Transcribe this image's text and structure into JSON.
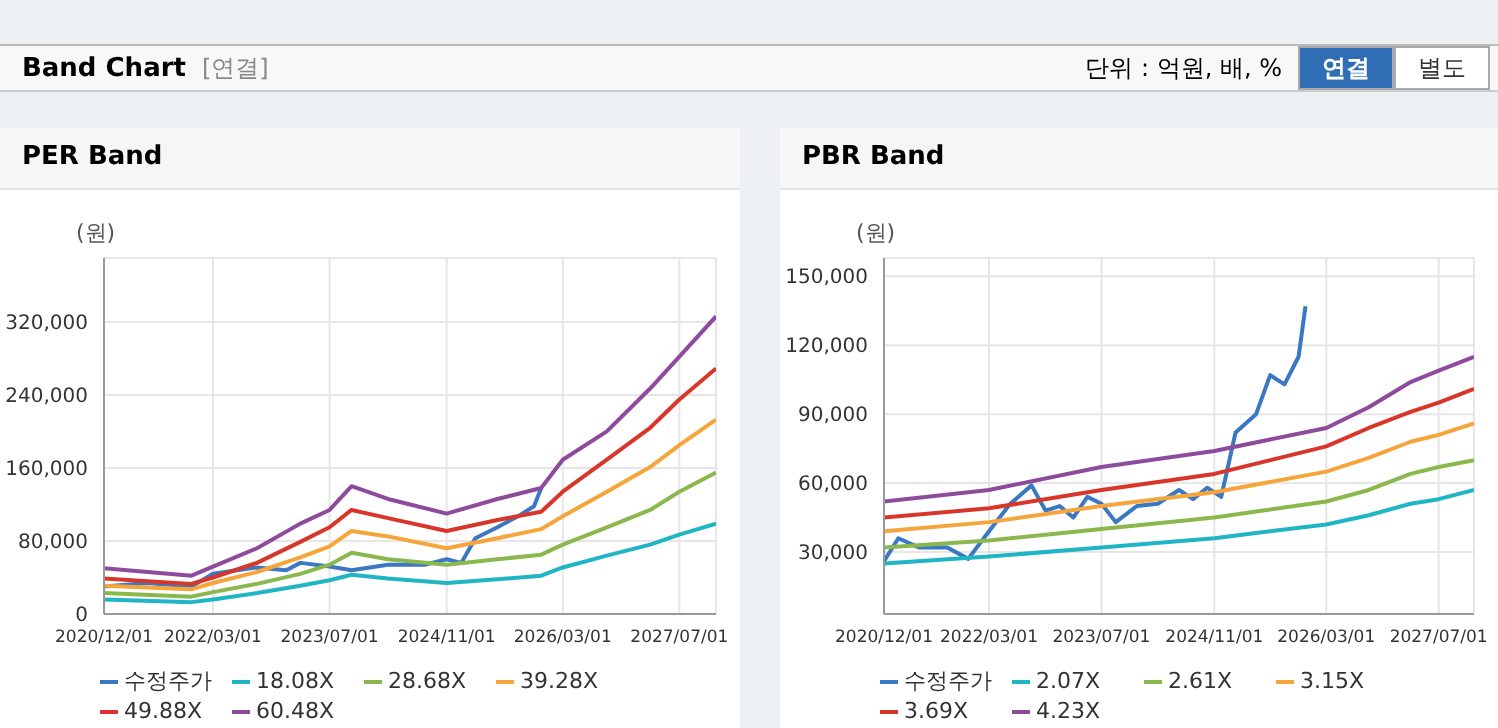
{
  "chart_data": [
    {
      "type": "other",
      "title": "Band Chart",
      "annotations": [
        "[연결]",
        "단위 : 억원, 배, %",
        "연결",
        "별도"
      ]
    },
    {
      "type": "line",
      "title": "PER Band",
      "ylabel": "(원)",
      "legend": "bottom",
      "grid": true,
      "xlim": [
        "2020-12-01",
        "2027-12-01"
      ],
      "ylim": [
        0,
        390000
      ],
      "xticks": [
        {
          "value": "2020-12-01",
          "label": "2020/12/01"
        },
        {
          "value": "2022-03-01",
          "label": "2022/03/01"
        },
        {
          "value": "2023-07-01",
          "label": "2023/07/01"
        },
        {
          "value": "2024-11-01",
          "label": "2024/11/01"
        },
        {
          "value": "2026-03-01",
          "label": "2026/03/01"
        },
        {
          "value": "2027-07-01",
          "label": "2027/07/01"
        }
      ],
      "yticks": [
        0,
        {
          "value": 80000,
          "label": "80,000"
        },
        {
          "value": 160000,
          "label": "160,000"
        },
        {
          "value": 240000,
          "label": "240,000"
        },
        {
          "value": 320000,
          "label": "320,000"
        }
      ],
      "series": [
        {
          "name": "수정주가",
          "color": "#3a78c3",
          "x": [
            "2020-12-01",
            "2021-06-01",
            "2021-12-01",
            "2022-03-01",
            "2022-09-01",
            "2023-01-01",
            "2023-03-01",
            "2023-07-01",
            "2023-10-01",
            "2024-03-01",
            "2024-08-01",
            "2024-11-01",
            "2025-01-01",
            "2025-03-01",
            "2025-06-01",
            "2025-09-01",
            "2025-11-01",
            "2025-12-01"
          ],
          "values": [
            30000,
            34000,
            30000,
            44000,
            51000,
            48000,
            56000,
            52000,
            48000,
            54000,
            54000,
            60000,
            56000,
            83000,
            95000,
            108000,
            118000,
            138000
          ]
        },
        {
          "name": "18.08X",
          "color": "#1fb5c5",
          "x": [
            "2020-12-01",
            "2021-12-01",
            "2022-03-01",
            "2022-09-01",
            "2023-03-01",
            "2023-07-01",
            "2023-10-01",
            "2024-03-01",
            "2024-11-01",
            "2025-06-01",
            "2025-12-01",
            "2026-03-01",
            "2026-09-01",
            "2027-03-01",
            "2027-07-01",
            "2027-12-01"
          ],
          "values": [
            16000,
            13000,
            16000,
            23000,
            31000,
            37000,
            43000,
            39000,
            34000,
            38000,
            42000,
            51000,
            64000,
            76000,
            87000,
            99000
          ]
        },
        {
          "name": "28.68X",
          "color": "#8ab84d",
          "x": [
            "2020-12-01",
            "2021-12-01",
            "2022-03-01",
            "2022-09-01",
            "2023-03-01",
            "2023-07-01",
            "2023-10-01",
            "2024-03-01",
            "2024-11-01",
            "2025-06-01",
            "2025-12-01",
            "2026-03-01",
            "2026-09-01",
            "2027-03-01",
            "2027-07-01",
            "2027-12-01"
          ],
          "values": [
            23000,
            19000,
            24000,
            33000,
            44000,
            54000,
            67000,
            60000,
            54000,
            60000,
            65000,
            76000,
            95000,
            114000,
            134000,
            155000
          ]
        },
        {
          "name": "39.28X",
          "color": "#f5a53a",
          "x": [
            "2020-12-01",
            "2021-12-01",
            "2022-03-01",
            "2022-09-01",
            "2023-03-01",
            "2023-07-01",
            "2023-10-01",
            "2024-03-01",
            "2024-11-01",
            "2025-06-01",
            "2025-12-01",
            "2026-03-01",
            "2026-09-01",
            "2027-03-01",
            "2027-07-01",
            "2027-12-01"
          ],
          "values": [
            31000,
            27000,
            34000,
            46000,
            62000,
            74000,
            91000,
            85000,
            72000,
            83000,
            93000,
            107000,
            134000,
            161000,
            185000,
            213000
          ]
        },
        {
          "name": "49.88X",
          "color": "#d9362b",
          "x": [
            "2020-12-01",
            "2021-12-01",
            "2022-03-01",
            "2022-09-01",
            "2023-03-01",
            "2023-07-01",
            "2023-10-01",
            "2024-03-01",
            "2024-11-01",
            "2025-06-01",
            "2025-12-01",
            "2026-03-01",
            "2026-09-01",
            "2027-03-01",
            "2027-07-01",
            "2027-12-01"
          ],
          "values": [
            39000,
            33000,
            40000,
            56000,
            79000,
            95000,
            114000,
            105000,
            91000,
            103000,
            112000,
            134000,
            169000,
            204000,
            235000,
            269000
          ]
        },
        {
          "name": "60.48X",
          "color": "#8e4a9c",
          "x": [
            "2020-12-01",
            "2021-12-01",
            "2022-03-01",
            "2022-09-01",
            "2023-03-01",
            "2023-07-01",
            "2023-10-01",
            "2024-03-01",
            "2024-11-01",
            "2025-06-01",
            "2025-12-01",
            "2026-03-01",
            "2026-09-01",
            "2027-03-01",
            "2027-07-01",
            "2027-12-01"
          ],
          "values": [
            50000,
            42000,
            52000,
            72000,
            99000,
            114000,
            140000,
            126000,
            110000,
            126000,
            138000,
            169000,
            200000,
            247000,
            282000,
            326000
          ]
        }
      ]
    },
    {
      "type": "line",
      "title": "PBR Band",
      "ylabel": "(원)",
      "legend": "bottom",
      "grid": true,
      "xlim": [
        "2020-12-01",
        "2027-12-01"
      ],
      "ylim": [
        3000,
        158000
      ],
      "xticks": [
        {
          "value": "2020-12-01",
          "label": "2020/12/01"
        },
        {
          "value": "2022-03-01",
          "label": "2022/03/01"
        },
        {
          "value": "2023-07-01",
          "label": "2023/07/01"
        },
        {
          "value": "2024-11-01",
          "label": "2024/11/01"
        },
        {
          "value": "2026-03-01",
          "label": "2026/03/01"
        },
        {
          "value": "2027-07-01",
          "label": "2027/07/01"
        }
      ],
      "yticks": [
        {
          "value": 30000,
          "label": "30,000"
        },
        {
          "value": 60000,
          "label": "60,000"
        },
        {
          "value": 90000,
          "label": "90,000"
        },
        {
          "value": 120000,
          "label": "120,000"
        },
        {
          "value": 150000,
          "label": "150,000"
        }
      ],
      "series": [
        {
          "name": "수정주가",
          "color": "#3a78c3",
          "x": [
            "2020-12-01",
            "2021-02-01",
            "2021-05-01",
            "2021-09-01",
            "2021-12-01",
            "2022-03-01",
            "2022-06-01",
            "2022-09-01",
            "2022-11-01",
            "2023-01-01",
            "2023-03-01",
            "2023-05-01",
            "2023-07-01",
            "2023-09-01",
            "2023-12-01",
            "2024-03-01",
            "2024-06-01",
            "2024-08-01",
            "2024-10-01",
            "2024-12-01",
            "2025-02-01",
            "2025-05-01",
            "2025-07-01",
            "2025-09-01",
            "2025-11-01",
            "2025-12-01"
          ],
          "values": [
            26000,
            36000,
            32000,
            32000,
            27000,
            39000,
            51000,
            59000,
            48000,
            50000,
            45000,
            54000,
            51000,
            43000,
            50000,
            51000,
            57000,
            53000,
            58000,
            54000,
            82000,
            90000,
            107000,
            103000,
            115000,
            137000
          ]
        },
        {
          "name": "2.07X",
          "color": "#1fb5c5",
          "x": [
            "2020-12-01",
            "2022-03-01",
            "2023-07-01",
            "2024-11-01",
            "2026-03-01",
            "2026-09-01",
            "2027-03-01",
            "2027-07-01",
            "2027-12-01"
          ],
          "values": [
            25000,
            28000,
            32000,
            36000,
            42000,
            46000,
            51000,
            53000,
            57000
          ]
        },
        {
          "name": "2.61X",
          "color": "#8ab84d",
          "x": [
            "2020-12-01",
            "2022-03-01",
            "2023-07-01",
            "2024-11-01",
            "2026-03-01",
            "2026-09-01",
            "2027-03-01",
            "2027-07-01",
            "2027-12-01"
          ],
          "values": [
            32000,
            35000,
            40000,
            45000,
            52000,
            57000,
            64000,
            67000,
            70000
          ]
        },
        {
          "name": "3.15X",
          "color": "#f5a53a",
          "x": [
            "2020-12-01",
            "2022-03-01",
            "2023-07-01",
            "2024-11-01",
            "2026-03-01",
            "2026-09-01",
            "2027-03-01",
            "2027-07-01",
            "2027-12-01"
          ],
          "values": [
            39000,
            43000,
            50000,
            56000,
            65000,
            71000,
            78000,
            81000,
            86000
          ]
        },
        {
          "name": "3.69X",
          "color": "#d9362b",
          "x": [
            "2020-12-01",
            "2022-03-01",
            "2023-07-01",
            "2024-11-01",
            "2026-03-01",
            "2026-09-01",
            "2027-03-01",
            "2027-07-01",
            "2027-12-01"
          ],
          "values": [
            45000,
            49000,
            57000,
            64000,
            76000,
            84000,
            91000,
            95000,
            101000
          ]
        },
        {
          "name": "4.23X",
          "color": "#8e4a9c",
          "x": [
            "2020-12-01",
            "2022-03-01",
            "2023-07-01",
            "2024-11-01",
            "2026-03-01",
            "2026-09-01",
            "2027-03-01",
            "2027-07-01",
            "2027-12-01"
          ],
          "values": [
            52000,
            57000,
            67000,
            74000,
            84000,
            93000,
            104000,
            109000,
            115000
          ]
        }
      ]
    }
  ]
}
